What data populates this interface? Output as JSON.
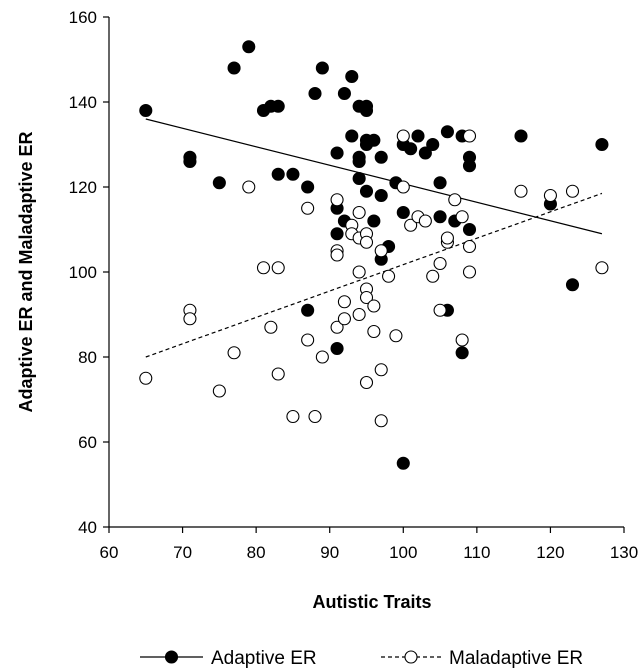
{
  "chart_data": {
    "type": "scatter",
    "title": "",
    "xlabel": "Autistic Traits",
    "ylabel": "Adaptive ER and Maladaptive ER",
    "xlim": [
      60,
      130
    ],
    "ylim": [
      40,
      160
    ],
    "xticks": [
      "60",
      "70",
      "80",
      "90",
      "100",
      "110",
      "120",
      "130"
    ],
    "yticks": [
      "40",
      "60",
      "80",
      "100",
      "120",
      "140",
      "160"
    ],
    "grid": false,
    "legend_position": "bottom",
    "series": [
      {
        "name": "Adaptive ER",
        "marker": "filled-circle",
        "trendline": "solid",
        "trend": [
          [
            65,
            136
          ],
          [
            127,
            109
          ]
        ],
        "points": [
          [
            65,
            138
          ],
          [
            71,
            127
          ],
          [
            71,
            126
          ],
          [
            75,
            121
          ],
          [
            77,
            148
          ],
          [
            79,
            153
          ],
          [
            81,
            138
          ],
          [
            82,
            139
          ],
          [
            83,
            139
          ],
          [
            83,
            123
          ],
          [
            85,
            123
          ],
          [
            87,
            120
          ],
          [
            87,
            91
          ],
          [
            88,
            142
          ],
          [
            89,
            148
          ],
          [
            91,
            128
          ],
          [
            91,
            115
          ],
          [
            91,
            109
          ],
          [
            91,
            82
          ],
          [
            92,
            142
          ],
          [
            92,
            112
          ],
          [
            93,
            146
          ],
          [
            93,
            132
          ],
          [
            94,
            139
          ],
          [
            94,
            127
          ],
          [
            94,
            126
          ],
          [
            94,
            122
          ],
          [
            95,
            139
          ],
          [
            95,
            138
          ],
          [
            95,
            131
          ],
          [
            95,
            130
          ],
          [
            95,
            119
          ],
          [
            96,
            131
          ],
          [
            96,
            112
          ],
          [
            97,
            127
          ],
          [
            97,
            118
          ],
          [
            97,
            103
          ],
          [
            98,
            106
          ],
          [
            99,
            121
          ],
          [
            100,
            130
          ],
          [
            100,
            114
          ],
          [
            100,
            55
          ],
          [
            101,
            129
          ],
          [
            102,
            132
          ],
          [
            103,
            128
          ],
          [
            104,
            130
          ],
          [
            105,
            121
          ],
          [
            105,
            113
          ],
          [
            106,
            133
          ],
          [
            106,
            91
          ],
          [
            107,
            112
          ],
          [
            108,
            132
          ],
          [
            108,
            81
          ],
          [
            109,
            127
          ],
          [
            109,
            125
          ],
          [
            109,
            110
          ],
          [
            116,
            132
          ],
          [
            120,
            116
          ],
          [
            123,
            97
          ],
          [
            127,
            130
          ]
        ]
      },
      {
        "name": "Maladaptive ER",
        "marker": "open-circle",
        "trendline": "dashed",
        "trend": [
          [
            65,
            80
          ],
          [
            127,
            118.5
          ]
        ],
        "points": [
          [
            65,
            75
          ],
          [
            71,
            91
          ],
          [
            71,
            89
          ],
          [
            75,
            72
          ],
          [
            77,
            81
          ],
          [
            79,
            120
          ],
          [
            81,
            101
          ],
          [
            82,
            87
          ],
          [
            83,
            101
          ],
          [
            83,
            76
          ],
          [
            85,
            66
          ],
          [
            87,
            115
          ],
          [
            87,
            84
          ],
          [
            88,
            66
          ],
          [
            89,
            80
          ],
          [
            91,
            117
          ],
          [
            91,
            105
          ],
          [
            91,
            104
          ],
          [
            91,
            87
          ],
          [
            92,
            93
          ],
          [
            92,
            89
          ],
          [
            93,
            111
          ],
          [
            93,
            109
          ],
          [
            94,
            114
          ],
          [
            94,
            108
          ],
          [
            94,
            100
          ],
          [
            94,
            90
          ],
          [
            95,
            109
          ],
          [
            95,
            107
          ],
          [
            95,
            96
          ],
          [
            95,
            94
          ],
          [
            95,
            74
          ],
          [
            96,
            92
          ],
          [
            96,
            86
          ],
          [
            97,
            105
          ],
          [
            97,
            77
          ],
          [
            97,
            65
          ],
          [
            98,
            99
          ],
          [
            99,
            85
          ],
          [
            100,
            132
          ],
          [
            100,
            120
          ],
          [
            101,
            111
          ],
          [
            102,
            113
          ],
          [
            103,
            112
          ],
          [
            104,
            99
          ],
          [
            105,
            102
          ],
          [
            105,
            91
          ],
          [
            106,
            107
          ],
          [
            106,
            108
          ],
          [
            107,
            117
          ],
          [
            108,
            113
          ],
          [
            108,
            84
          ],
          [
            109,
            132
          ],
          [
            109,
            106
          ],
          [
            109,
            100
          ],
          [
            116,
            119
          ],
          [
            120,
            118
          ],
          [
            123,
            119
          ],
          [
            127,
            101
          ]
        ]
      }
    ]
  }
}
